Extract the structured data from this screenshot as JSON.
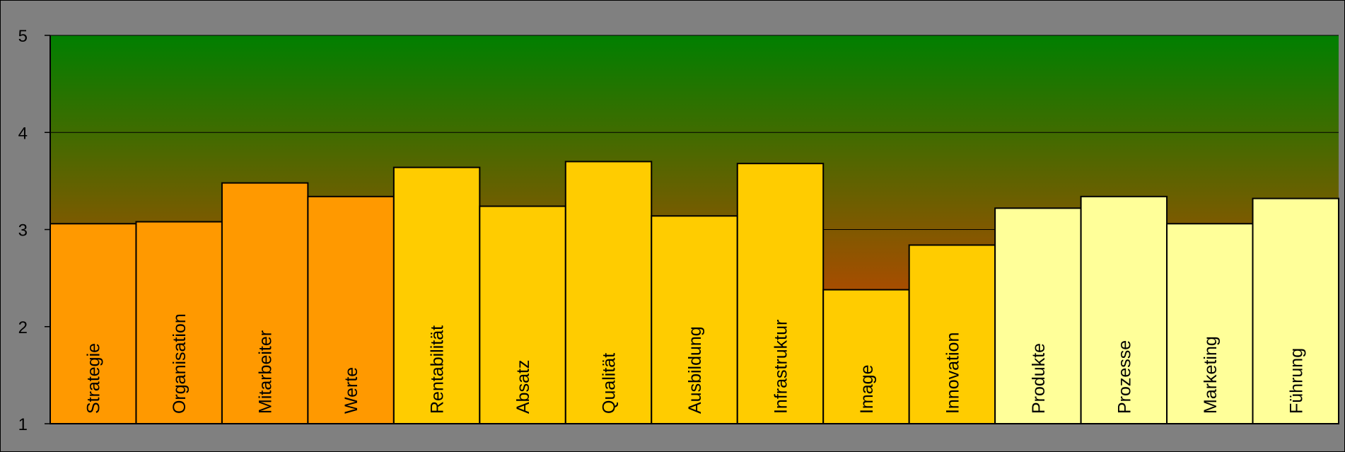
{
  "chart_data": {
    "type": "bar",
    "categories": [
      "Strategie",
      "Organisation",
      "Mitarbeiter",
      "Werte",
      "Rentabilität",
      "Absatz",
      "Qualität",
      "Ausbildung",
      "Infrastruktur",
      "Image",
      "Innovation",
      "Produkte",
      "Prozesse",
      "Marketing",
      "Führung"
    ],
    "values": [
      3.06,
      3.08,
      3.48,
      3.34,
      3.64,
      3.24,
      3.7,
      3.14,
      3.68,
      2.38,
      2.84,
      3.22,
      3.34,
      3.06,
      3.32
    ],
    "bar_colors": [
      "#FF9900",
      "#FF9900",
      "#FF9900",
      "#FF9900",
      "#FFCC00",
      "#FFCC00",
      "#FFCC00",
      "#FFCC00",
      "#FFCC00",
      "#FFCC00",
      "#FFCC00",
      "#FFFF99",
      "#FFFF99",
      "#FFFF99",
      "#FFFF99"
    ],
    "ylim": [
      1,
      5
    ],
    "yticks": [
      "1",
      "2",
      "3",
      "4",
      "5"
    ],
    "grid": true,
    "legend": "none",
    "background_gradient": [
      "#007F00",
      "#FF3300"
    ],
    "title": "",
    "xlabel": "",
    "ylabel": ""
  }
}
